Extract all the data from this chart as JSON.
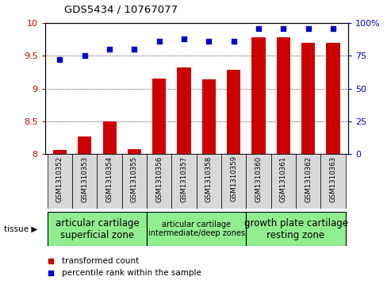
{
  "title": "GDS5434 / 10767077",
  "samples": [
    "GSM1310352",
    "GSM1310353",
    "GSM1310354",
    "GSM1310355",
    "GSM1310356",
    "GSM1310357",
    "GSM1310358",
    "GSM1310359",
    "GSM1310360",
    "GSM1310361",
    "GSM1310362",
    "GSM1310363"
  ],
  "transformed_count": [
    8.06,
    8.27,
    8.5,
    8.08,
    9.15,
    9.32,
    9.14,
    9.28,
    9.78,
    9.78,
    9.7,
    9.7
  ],
  "percentile_rank": [
    72,
    75,
    80,
    80,
    86,
    88,
    86,
    86,
    96,
    96,
    96,
    96
  ],
  "ylim_left": [
    8.0,
    10.0
  ],
  "ylim_right": [
    0,
    100
  ],
  "yticks_left": [
    8.0,
    8.5,
    9.0,
    9.5,
    10.0
  ],
  "ytick_labels_left": [
    "8",
    "8.5",
    "9",
    "9.5",
    "10"
  ],
  "yticks_right": [
    0,
    25,
    50,
    75,
    100
  ],
  "ytick_labels_right": [
    "0",
    "25",
    "50",
    "75",
    "100%"
  ],
  "groups": [
    {
      "label": "articular cartilage\nsuperficial zone",
      "start": 0,
      "end": 3,
      "fontsize": 8.5
    },
    {
      "label": "articular cartilage\nintermediate/deep zones",
      "start": 4,
      "end": 7,
      "fontsize": 7.0
    },
    {
      "label": "growth plate cartilage\nresting zone",
      "start": 8,
      "end": 11,
      "fontsize": 8.5
    }
  ],
  "group_color": "#90EE90",
  "bar_color": "#CC0000",
  "dot_color": "#0000CC",
  "bar_width": 0.55,
  "bg_color": "#d8d8d8",
  "tissue_label": "tissue",
  "legend_bar_label": "transformed count",
  "legend_dot_label": "percentile rank within the sample"
}
